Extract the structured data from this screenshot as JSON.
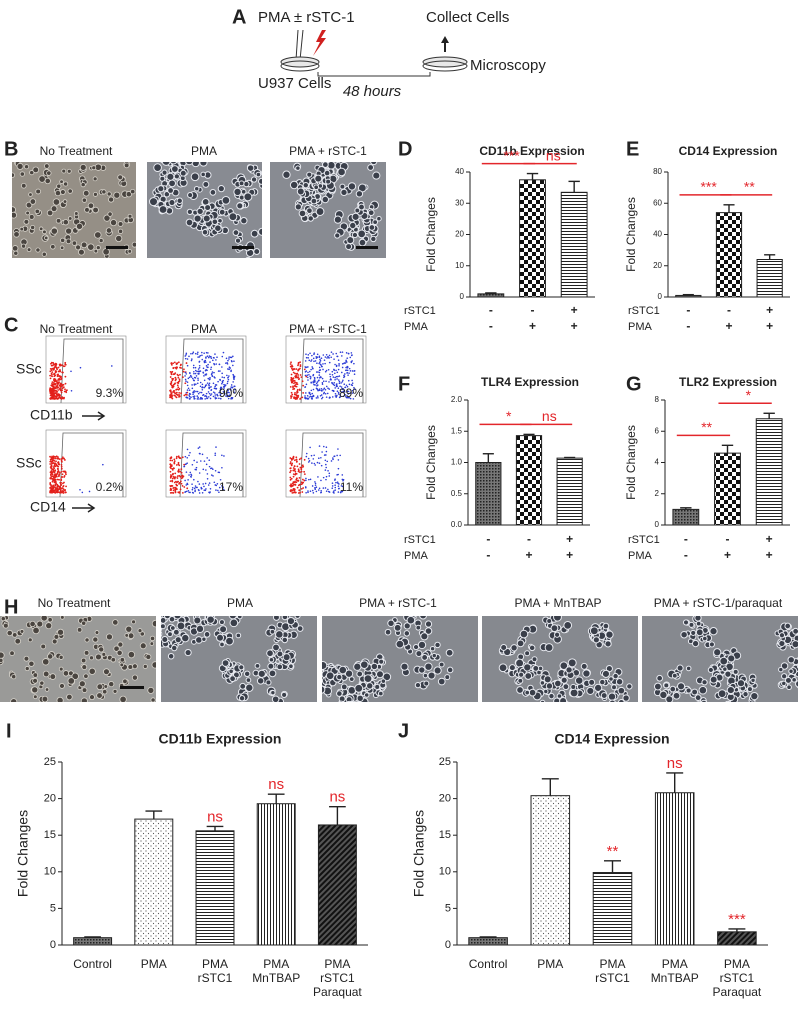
{
  "schematic": {
    "panel": "A",
    "treatment": "PMA ± rSTC-1",
    "collect": "Collect Cells",
    "cells": "U937 Cells",
    "duration": "48 hours",
    "readout": "Microscopy"
  },
  "micrographs_b": {
    "panel": "B",
    "captions": [
      "No Treatment",
      "PMA",
      "PMA + rSTC-1"
    ]
  },
  "flow_c": {
    "panel": "C",
    "columns": [
      "No Treatment",
      "PMA",
      "PMA + rSTC-1"
    ],
    "rows": [
      {
        "y_label": "SSc",
        "x_label": "CD11b",
        "percents": [
          "9.3%",
          "90%",
          "89%"
        ]
      },
      {
        "y_label": "SSc",
        "x_label": "CD14",
        "percents": [
          "0.2%",
          "17%",
          "11%"
        ]
      }
    ]
  },
  "micrographs_h": {
    "panel": "H",
    "captions": [
      "No Treatment",
      "PMA",
      "PMA + rSTC-1",
      "PMA + MnTBAP",
      "PMA + rSTC-1/paraquat"
    ]
  },
  "chart_data": [
    {
      "type": "bar",
      "panel": "D",
      "title": "CD11b Expression",
      "y_label": "Fold Changes",
      "values": [
        1,
        37.5,
        33.5
      ],
      "errors": [
        0.3,
        2,
        3.5
      ],
      "ylim": [
        0,
        40
      ],
      "yticks": [
        0,
        10,
        20,
        30,
        40
      ],
      "patterns": [
        "dense",
        "checker",
        "hlines"
      ],
      "color": "#222222",
      "accent_color": "#e3262b",
      "conditions": [
        {
          "name": "rSTC1",
          "marks": [
            "-",
            "-",
            "+"
          ]
        },
        {
          "name": "PMA",
          "marks": [
            "-",
            "+",
            "+"
          ]
        }
      ],
      "significance": [
        "***",
        "ns"
      ]
    },
    {
      "type": "bar",
      "panel": "E",
      "title": "CD14 Expression",
      "y_label": "Fold Changes",
      "values": [
        1,
        54,
        24
      ],
      "errors": [
        0.5,
        5,
        3
      ],
      "ylim": [
        0,
        80
      ],
      "yticks": [
        0,
        20,
        40,
        60,
        80
      ],
      "patterns": [
        "dense",
        "checker",
        "hlines"
      ],
      "color": "#222222",
      "accent_color": "#e3262b",
      "conditions": [
        {
          "name": "rSTC1",
          "marks": [
            "-",
            "-",
            "+"
          ]
        },
        {
          "name": "PMA",
          "marks": [
            "-",
            "+",
            "+"
          ]
        }
      ],
      "significance": [
        "***",
        "**"
      ]
    },
    {
      "type": "bar",
      "panel": "F",
      "title": "TLR4 Expression",
      "y_label": "Fold Changes",
      "values": [
        1.0,
        1.43,
        1.07
      ],
      "errors": [
        0.14,
        0.02,
        0.01
      ],
      "ylim": [
        0,
        2
      ],
      "yticks": [
        {
          "value": 0,
          "label": "0.0"
        },
        {
          "value": 0.5,
          "label": "0.5"
        },
        {
          "value": 1,
          "label": "1.0"
        },
        {
          "value": 1.5,
          "label": "1.5"
        },
        {
          "value": 2,
          "label": "2.0"
        }
      ],
      "patterns": [
        "dense",
        "checker",
        "hlines"
      ],
      "color": "#222222",
      "accent_color": "#e3262b",
      "conditions": [
        {
          "name": "rSTC1",
          "marks": [
            "-",
            "-",
            "+"
          ]
        },
        {
          "name": "PMA",
          "marks": [
            "-",
            "+",
            "+"
          ]
        }
      ],
      "significance": [
        "*",
        "ns"
      ]
    },
    {
      "type": "bar",
      "panel": "G",
      "title": "TLR2 Expression",
      "y_label": "Fold Changes",
      "values": [
        1.0,
        4.6,
        6.8
      ],
      "errors": [
        0.1,
        0.5,
        0.35
      ],
      "ylim": [
        0,
        8
      ],
      "yticks": [
        0,
        2,
        4,
        6,
        8
      ],
      "patterns": [
        "dense",
        "checker",
        "hlines"
      ],
      "color": "#222222",
      "accent_color": "#e3262b",
      "conditions": [
        {
          "name": "rSTC1",
          "marks": [
            "-",
            "-",
            "+"
          ]
        },
        {
          "name": "PMA",
          "marks": [
            "-",
            "+",
            "+"
          ]
        }
      ],
      "significance": [
        "**",
        "*"
      ]
    },
    {
      "type": "bar",
      "panel": "I",
      "title": "CD11b Expression",
      "y_label": "Fold Changes",
      "categories": [
        [
          "Control"
        ],
        [
          "PMA"
        ],
        [
          "PMA",
          "rSTC1"
        ],
        [
          "PMA",
          "MnTBAP"
        ],
        [
          "PMA",
          "rSTC1",
          "Paraquat"
        ]
      ],
      "values": [
        1,
        17.2,
        15.6,
        19.3,
        16.4
      ],
      "errors": [
        0.1,
        1.1,
        0.6,
        1.3,
        2.5
      ],
      "ylim": [
        0,
        25
      ],
      "yticks": [
        0,
        5,
        10,
        15,
        20,
        25
      ],
      "patterns": [
        "dense",
        "stipple",
        "hlines",
        "vlines",
        "diagonal"
      ],
      "color": "#222222",
      "accent_color": "#e3262b",
      "annotations": [
        null,
        null,
        "ns",
        "ns",
        "ns"
      ]
    },
    {
      "type": "bar",
      "panel": "J",
      "title": "CD14 Expression",
      "y_label": "Fold Changes",
      "categories": [
        [
          "Control"
        ],
        [
          "PMA"
        ],
        [
          "PMA",
          "rSTC1"
        ],
        [
          "PMA",
          "MnTBAP"
        ],
        [
          "PMA",
          "rSTC1",
          "Paraquat"
        ]
      ],
      "values": [
        1,
        20.4,
        9.9,
        20.8,
        1.8
      ],
      "errors": [
        0.1,
        2.3,
        1.6,
        2.7,
        0.4
      ],
      "ylim": [
        0,
        25
      ],
      "yticks": [
        0,
        5,
        10,
        15,
        20,
        25
      ],
      "patterns": [
        "dense",
        "stipple",
        "hlines",
        "vlines",
        "diagonal"
      ],
      "color": "#222222",
      "accent_color": "#e3262b",
      "annotations": [
        null,
        null,
        "**",
        "ns",
        "***"
      ]
    }
  ]
}
